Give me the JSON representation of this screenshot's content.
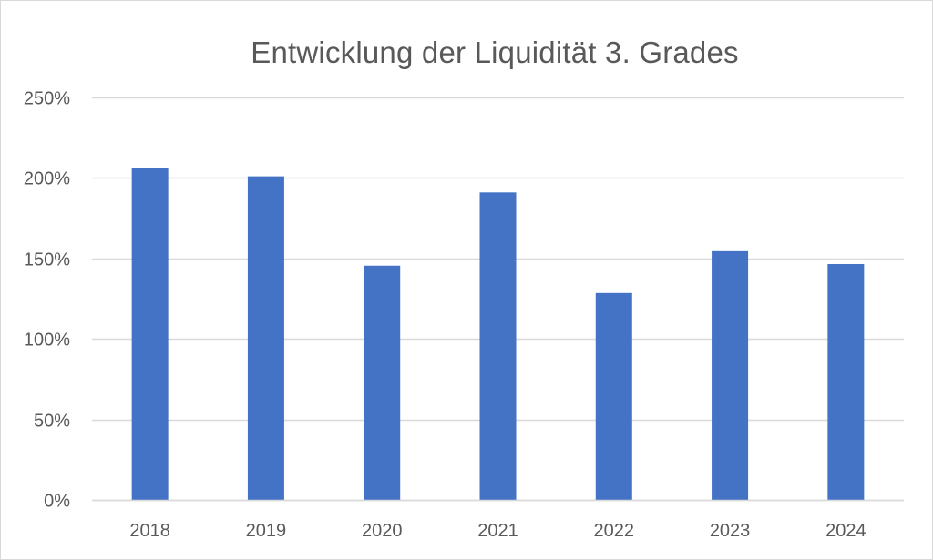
{
  "chart_data": {
    "type": "bar",
    "title": "Entwicklung der Liquidität 3. Grades",
    "categories": [
      "2018",
      "2019",
      "2020",
      "2021",
      "2022",
      "2023",
      "2024"
    ],
    "values": [
      2.06,
      2.01,
      1.455,
      1.91,
      1.285,
      1.545,
      1.465
    ],
    "ylim": [
      0,
      2.5
    ],
    "yticks": [
      0,
      0.5,
      1.0,
      1.5,
      2.0,
      2.5
    ],
    "ytick_labels": [
      "0%",
      "50%",
      "100%",
      "150%",
      "200%",
      "250%"
    ],
    "grid": true,
    "legend": "none",
    "colors": {
      "bar": "#4472c4",
      "grid": "#d9d9d9",
      "axis": "#d9d9d9",
      "text": "#595959"
    }
  }
}
